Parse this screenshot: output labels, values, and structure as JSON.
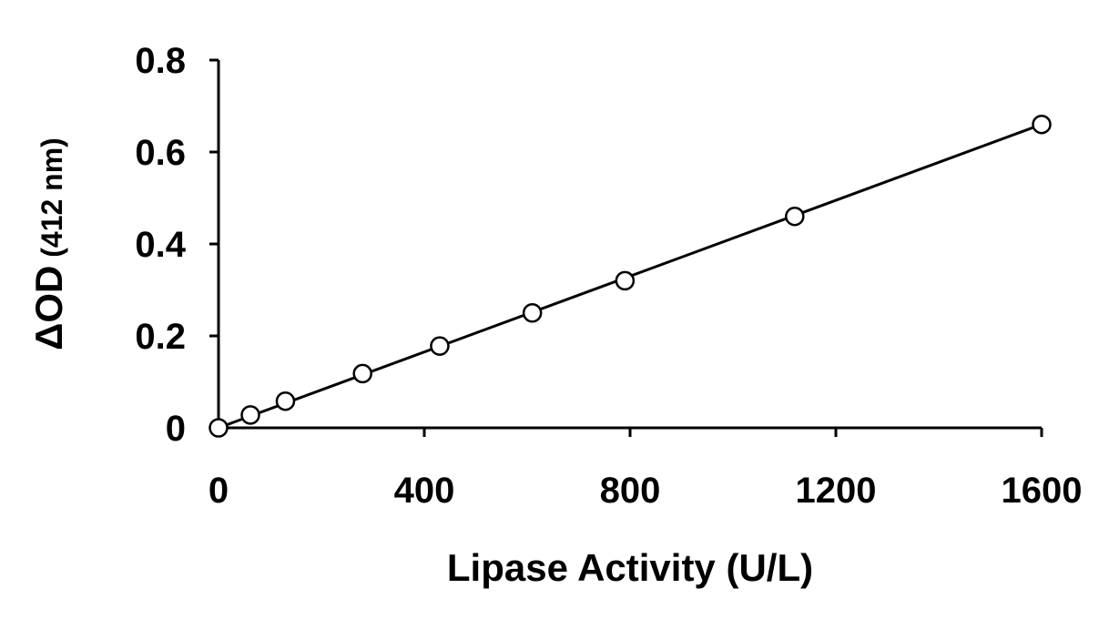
{
  "chart_data": {
    "type": "scatter",
    "title": "",
    "xlabel": "Lipase Activity (U/L)",
    "ylabel_main": "ΔOD",
    "ylabel_sub": " (412 nm)",
    "xlim": [
      0,
      1600
    ],
    "ylim": [
      0,
      0.8
    ],
    "x_ticks": [
      0,
      400,
      800,
      1200,
      1600
    ],
    "x_tick_labels": [
      "0",
      "400",
      "800",
      "1200",
      "1600"
    ],
    "y_ticks": [
      0,
      0.2,
      0.4,
      0.6,
      0.8
    ],
    "y_tick_labels": [
      "0",
      "0.2",
      "0.4",
      "0.6",
      "0.8"
    ],
    "grid": false,
    "legend": "none",
    "series": [
      {
        "marker": "open-circle",
        "x": [
          0,
          62,
          130,
          280,
          430,
          610,
          790,
          1120,
          1600
        ],
        "y": [
          0,
          0.028,
          0.058,
          0.118,
          0.178,
          0.25,
          0.32,
          0.46,
          0.66
        ]
      }
    ],
    "fit_line": {
      "x": [
        0,
        1600
      ],
      "y": [
        0,
        0.66
      ]
    },
    "colors": {
      "axis": "#000000",
      "line": "#000000",
      "marker_fill": "#ffffff",
      "marker_stroke": "#000000"
    }
  }
}
